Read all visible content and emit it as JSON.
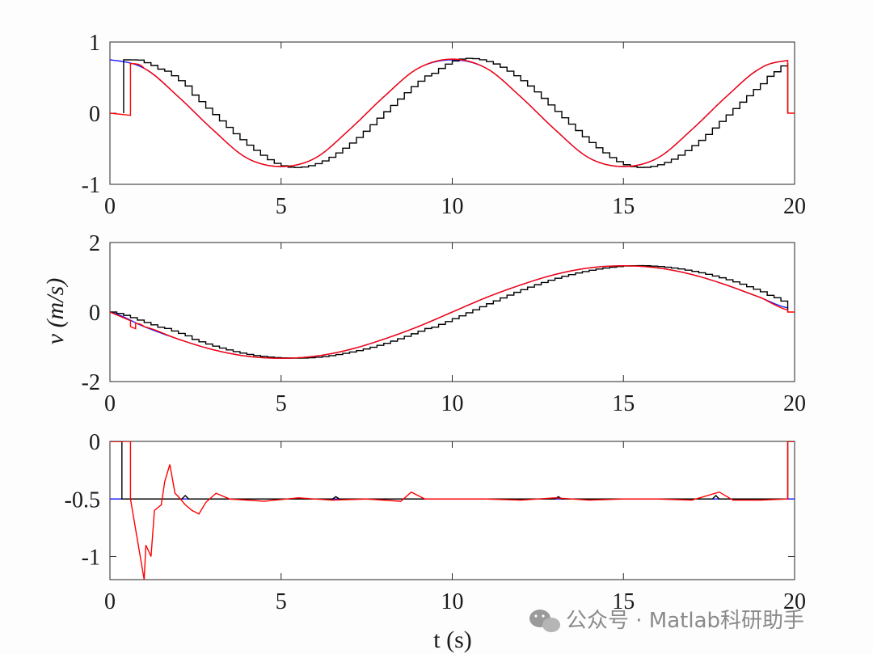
{
  "chart_data": [
    {
      "type": "line",
      "xlabel": "",
      "ylabel": "",
      "xlim": [
        0,
        20
      ],
      "ylim": [
        -1,
        1
      ],
      "xticks": [
        "0",
        "5",
        "10",
        "15",
        "20"
      ],
      "yticks": [
        "-1",
        "0",
        "1"
      ],
      "grid": false,
      "series": [
        {
          "color": "#1a1aff",
          "style": "smooth",
          "points": [
            [
              0,
              0.75
            ],
            [
              1,
              0.63
            ],
            [
              2,
              0.23
            ],
            [
              3,
              -0.23
            ],
            [
              4,
              -0.63
            ],
            [
              5,
              -0.75
            ],
            [
              6,
              -0.63
            ],
            [
              7,
              -0.23
            ],
            [
              8,
              0.23
            ],
            [
              9,
              0.63
            ],
            [
              10,
              0.75
            ],
            [
              11,
              0.63
            ],
            [
              12,
              0.23
            ],
            [
              13,
              -0.23
            ],
            [
              14,
              -0.63
            ],
            [
              15,
              -0.75
            ],
            [
              16,
              -0.63
            ],
            [
              17,
              -0.23
            ],
            [
              18,
              0.23
            ],
            [
              19,
              0.63
            ],
            [
              19.8,
              0.74
            ]
          ]
        },
        {
          "color": "#000000",
          "style": "staircase",
          "points": [
            [
              0.4,
              0
            ],
            [
              0.4,
              0.75
            ],
            [
              1,
              0.71
            ],
            [
              2,
              0.42
            ],
            [
              3,
              -0.02
            ],
            [
              4,
              -0.45
            ],
            [
              5,
              -0.74
            ],
            [
              6,
              -0.71
            ],
            [
              7,
              -0.42
            ],
            [
              8,
              0.02
            ],
            [
              9,
              0.45
            ],
            [
              10,
              0.75
            ],
            [
              11,
              0.71
            ],
            [
              12,
              0.42
            ],
            [
              13,
              -0.02
            ],
            [
              14,
              -0.45
            ],
            [
              15,
              -0.74
            ],
            [
              16,
              -0.71
            ],
            [
              17,
              -0.42
            ],
            [
              18,
              0.02
            ],
            [
              19,
              0.45
            ],
            [
              19.8,
              0.72
            ],
            [
              19.8,
              0
            ]
          ]
        },
        {
          "color": "#ff0000",
          "style": "smooth",
          "points": [
            [
              0,
              0
            ],
            [
              0.6,
              -0.03
            ],
            [
              0.6,
              0.7
            ],
            [
              1,
              0.63
            ],
            [
              2,
              0.23
            ],
            [
              3,
              -0.23
            ],
            [
              4,
              -0.63
            ],
            [
              5,
              -0.75
            ],
            [
              6,
              -0.63
            ],
            [
              7,
              -0.23
            ],
            [
              8,
              0.23
            ],
            [
              9,
              0.63
            ],
            [
              10,
              0.76
            ],
            [
              11,
              0.63
            ],
            [
              12,
              0.23
            ],
            [
              13,
              -0.23
            ],
            [
              14,
              -0.63
            ],
            [
              15,
              -0.75
            ],
            [
              16,
              -0.63
            ],
            [
              17,
              -0.23
            ],
            [
              18,
              0.23
            ],
            [
              19,
              0.63
            ],
            [
              19.8,
              0.74
            ],
            [
              19.8,
              0
            ],
            [
              20,
              0
            ]
          ]
        }
      ]
    },
    {
      "type": "line",
      "xlabel": "",
      "ylabel": "v (m/s)",
      "xlim": [
        0,
        20
      ],
      "ylim": [
        -2,
        2
      ],
      "xticks": [
        "0",
        "5",
        "10",
        "15",
        "20"
      ],
      "yticks": [
        "-2",
        "0",
        "2"
      ],
      "grid": false,
      "series": [
        {
          "color": "#1a1aff",
          "style": "smooth",
          "points": [
            [
              0,
              0
            ],
            [
              1,
              -0.42
            ],
            [
              2,
              -0.78
            ],
            [
              3,
              -1.08
            ],
            [
              4,
              -1.27
            ],
            [
              5,
              -1.33
            ],
            [
              6,
              -1.27
            ],
            [
              7,
              -1.08
            ],
            [
              8,
              -0.78
            ],
            [
              9,
              -0.42
            ],
            [
              10,
              0
            ],
            [
              11,
              0.42
            ],
            [
              12,
              0.78
            ],
            [
              13,
              1.08
            ],
            [
              14,
              1.27
            ],
            [
              15,
              1.33
            ],
            [
              16,
              1.27
            ],
            [
              17,
              1.08
            ],
            [
              18,
              0.78
            ],
            [
              19,
              0.42
            ],
            [
              19.8,
              0.12
            ]
          ]
        },
        {
          "color": "#000000",
          "style": "staircase",
          "points": [
            [
              0,
              0
            ],
            [
              1,
              -0.3
            ],
            [
              2,
              -0.65
            ],
            [
              3,
              -0.98
            ],
            [
              4,
              -1.22
            ],
            [
              5,
              -1.32
            ],
            [
              6,
              -1.3
            ],
            [
              7,
              -1.15
            ],
            [
              8,
              -0.9
            ],
            [
              9,
              -0.55
            ],
            [
              10,
              -0.15
            ],
            [
              11,
              0.28
            ],
            [
              12,
              0.68
            ],
            [
              13,
              1
            ],
            [
              14,
              1.22
            ],
            [
              15,
              1.33
            ],
            [
              16,
              1.3
            ],
            [
              17,
              1.15
            ],
            [
              18,
              0.9
            ],
            [
              19,
              0.55
            ],
            [
              19.8,
              0.25
            ],
            [
              19.8,
              0
            ]
          ]
        },
        {
          "color": "#ff0000",
          "style": "smooth",
          "points": [
            [
              0,
              0
            ],
            [
              0.6,
              -0.25
            ],
            [
              0.6,
              -0.42
            ],
            [
              0.75,
              -0.48
            ],
            [
              0.75,
              -0.32
            ],
            [
              1,
              -0.42
            ],
            [
              2,
              -0.78
            ],
            [
              3,
              -1.08
            ],
            [
              4,
              -1.27
            ],
            [
              5,
              -1.33
            ],
            [
              6,
              -1.27
            ],
            [
              7,
              -1.08
            ],
            [
              8,
              -0.78
            ],
            [
              9,
              -0.42
            ],
            [
              10,
              0
            ],
            [
              11,
              0.42
            ],
            [
              12,
              0.78
            ],
            [
              13,
              1.08
            ],
            [
              14,
              1.27
            ],
            [
              15,
              1.33
            ],
            [
              16,
              1.27
            ],
            [
              17,
              1.08
            ],
            [
              18,
              0.78
            ],
            [
              19,
              0.42
            ],
            [
              19.8,
              0.06
            ],
            [
              19.8,
              0
            ],
            [
              20,
              0
            ]
          ]
        }
      ]
    },
    {
      "type": "line",
      "xlabel": "t (s)",
      "ylabel": "",
      "xlim": [
        0,
        20
      ],
      "ylim": [
        -1.2,
        0
      ],
      "xticks": [
        "0",
        "5",
        "10",
        "15",
        "20"
      ],
      "yticks": [
        "0",
        "-0.5",
        "-1"
      ],
      "grid": false,
      "series": [
        {
          "color": "#1a1aff",
          "style": "flat",
          "points": [
            [
              0,
              -0.5
            ],
            [
              20,
              -0.5
            ]
          ]
        },
        {
          "color": "#000000",
          "style": "step",
          "points": [
            [
              0,
              0
            ],
            [
              0.35,
              0
            ],
            [
              0.35,
              -0.5
            ],
            [
              2.1,
              -0.5
            ],
            [
              2.2,
              -0.47
            ],
            [
              2.3,
              -0.5
            ],
            [
              5,
              -0.5
            ],
            [
              6.5,
              -0.5
            ],
            [
              6.6,
              -0.48
            ],
            [
              6.7,
              -0.5
            ],
            [
              10,
              -0.5
            ],
            [
              13,
              -0.5
            ],
            [
              13.1,
              -0.48
            ],
            [
              13.2,
              -0.5
            ],
            [
              17.6,
              -0.5
            ],
            [
              17.7,
              -0.47
            ],
            [
              17.8,
              -0.5
            ],
            [
              19.8,
              -0.5
            ],
            [
              19.8,
              0
            ],
            [
              20,
              0
            ]
          ]
        },
        {
          "color": "#ff0000",
          "style": "noisy",
          "points": [
            [
              0,
              0
            ],
            [
              0.6,
              0
            ],
            [
              0.6,
              -0.5
            ],
            [
              1.0,
              -1.2
            ],
            [
              1.05,
              -0.9
            ],
            [
              1.2,
              -1.0
            ],
            [
              1.3,
              -0.6
            ],
            [
              1.5,
              -0.55
            ],
            [
              1.6,
              -0.35
            ],
            [
              1.75,
              -0.2
            ],
            [
              1.9,
              -0.45
            ],
            [
              2.0,
              -0.48
            ],
            [
              2.2,
              -0.55
            ],
            [
              2.4,
              -0.6
            ],
            [
              2.6,
              -0.63
            ],
            [
              2.8,
              -0.53
            ],
            [
              3.1,
              -0.45
            ],
            [
              3.5,
              -0.5
            ],
            [
              4.5,
              -0.52
            ],
            [
              5.5,
              -0.49
            ],
            [
              6.5,
              -0.51
            ],
            [
              7.5,
              -0.5
            ],
            [
              8.5,
              -0.52
            ],
            [
              8.8,
              -0.44
            ],
            [
              9.2,
              -0.5
            ],
            [
              10,
              -0.5
            ],
            [
              11,
              -0.5
            ],
            [
              12,
              -0.51
            ],
            [
              13,
              -0.49
            ],
            [
              14,
              -0.51
            ],
            [
              15,
              -0.5
            ],
            [
              16,
              -0.5
            ],
            [
              17,
              -0.51
            ],
            [
              17.8,
              -0.44
            ],
            [
              18.2,
              -0.51
            ],
            [
              19,
              -0.51
            ],
            [
              19.8,
              -0.5
            ],
            [
              19.8,
              0
            ],
            [
              20,
              0
            ]
          ]
        }
      ]
    }
  ],
  "watermark": {
    "text": "公众号 · Matlab科研助手",
    "icon": "wechat-icon"
  }
}
